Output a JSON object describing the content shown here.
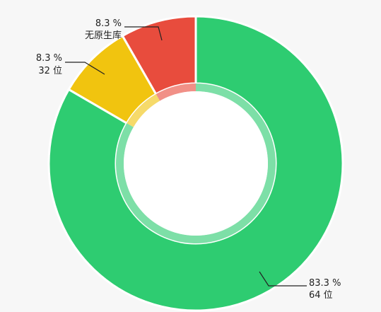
{
  "chart_data": {
    "type": "pie",
    "variant": "donut",
    "slices": [
      {
        "percent_label": "8.3 %",
        "name_label": "无原生库",
        "value": 8.3,
        "color": "#e84c3d"
      },
      {
        "percent_label": "8.3 %",
        "name_label": "32 位",
        "value": 8.3,
        "color": "#f1c40f"
      },
      {
        "percent_label": "83.3 %",
        "name_label": "64 位",
        "value": 83.3,
        "color": "#2ecc71"
      }
    ],
    "start": "top",
    "direction": "counterclockwise",
    "legend": "none"
  }
}
